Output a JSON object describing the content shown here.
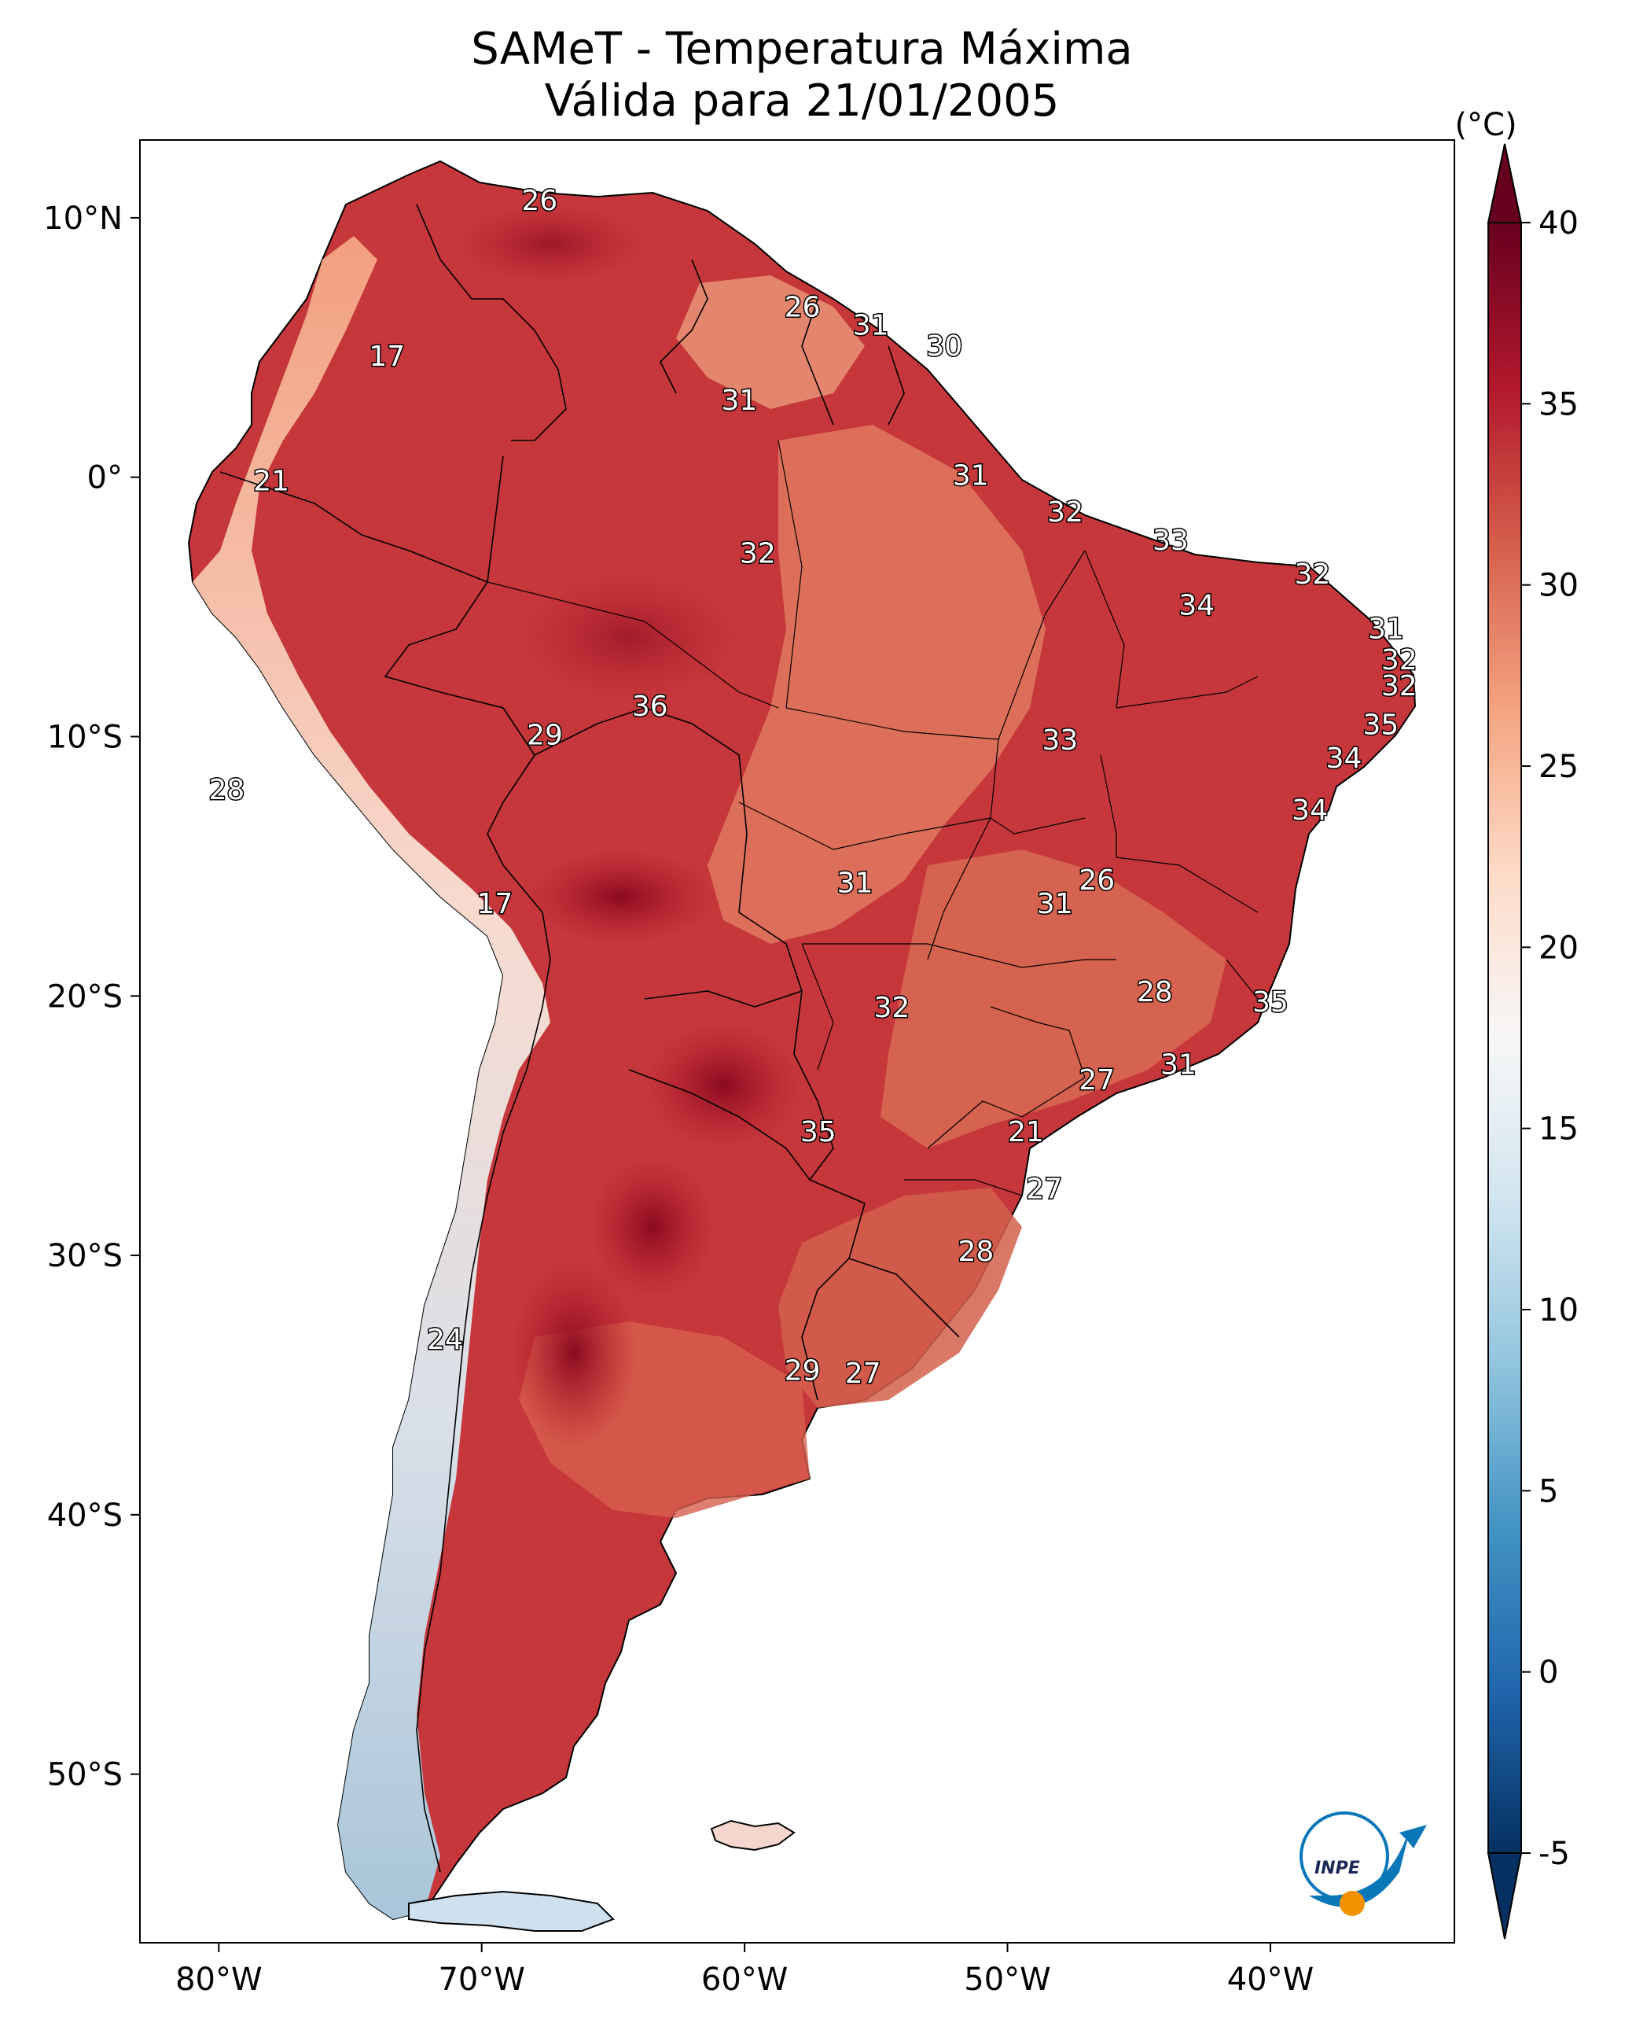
{
  "title": {
    "line1": "SAMeT - Temperatura Máxima",
    "line2": "Válida para 21/01/2005"
  },
  "map": {
    "lon_range": [
      -83,
      -33
    ],
    "lat_range": [
      -56.5,
      13
    ],
    "lon_ticks": [
      {
        "value": -80,
        "label": "80°W"
      },
      {
        "value": -70,
        "label": "70°W"
      },
      {
        "value": -60,
        "label": "60°W"
      },
      {
        "value": -50,
        "label": "50°W"
      },
      {
        "value": -40,
        "label": "40°W"
      }
    ],
    "lat_ticks": [
      {
        "value": 10,
        "label": "10°N"
      },
      {
        "value": 0,
        "label": "0°"
      },
      {
        "value": -10,
        "label": "10°S"
      },
      {
        "value": -20,
        "label": "20°S"
      },
      {
        "value": -30,
        "label": "30°S"
      },
      {
        "value": -40,
        "label": "40°S"
      },
      {
        "value": -50,
        "label": "50°S"
      }
    ],
    "point_labels": [
      {
        "lon": -67.8,
        "lat": 10.6,
        "value": "26"
      },
      {
        "lon": -73.6,
        "lat": 4.6,
        "value": "17"
      },
      {
        "lon": -57.8,
        "lat": 6.5,
        "value": "26"
      },
      {
        "lon": -55.2,
        "lat": 5.8,
        "value": "31"
      },
      {
        "lon": -52.4,
        "lat": 5.0,
        "value": "30"
      },
      {
        "lon": -60.2,
        "lat": 2.9,
        "value": "31"
      },
      {
        "lon": -78.0,
        "lat": -0.2,
        "value": "21"
      },
      {
        "lon": -51.4,
        "lat": 0.0,
        "value": "31"
      },
      {
        "lon": -47.8,
        "lat": -1.4,
        "value": "32"
      },
      {
        "lon": -43.8,
        "lat": -2.5,
        "value": "33"
      },
      {
        "lon": -59.5,
        "lat": -3.0,
        "value": "32"
      },
      {
        "lon": -38.4,
        "lat": -3.8,
        "value": "32"
      },
      {
        "lon": -42.8,
        "lat": -5.0,
        "value": "34"
      },
      {
        "lon": -35.6,
        "lat": -5.9,
        "value": "31"
      },
      {
        "lon": -35.1,
        "lat": -7.1,
        "value": "32"
      },
      {
        "lon": -35.1,
        "lat": -8.1,
        "value": "32"
      },
      {
        "lon": -63.6,
        "lat": -8.9,
        "value": "36"
      },
      {
        "lon": -35.8,
        "lat": -9.6,
        "value": "35"
      },
      {
        "lon": -48.0,
        "lat": -10.2,
        "value": "33"
      },
      {
        "lon": -67.6,
        "lat": -10.0,
        "value": "29"
      },
      {
        "lon": -37.2,
        "lat": -10.9,
        "value": "34"
      },
      {
        "lon": -79.7,
        "lat": -12.1,
        "value": "28"
      },
      {
        "lon": -38.5,
        "lat": -12.9,
        "value": "34"
      },
      {
        "lon": -55.8,
        "lat": -15.7,
        "value": "31"
      },
      {
        "lon": -46.6,
        "lat": -15.6,
        "value": "26"
      },
      {
        "lon": -48.2,
        "lat": -16.5,
        "value": "31"
      },
      {
        "lon": -69.5,
        "lat": -16.5,
        "value": "17"
      },
      {
        "lon": -44.4,
        "lat": -19.9,
        "value": "28"
      },
      {
        "lon": -40.0,
        "lat": -20.3,
        "value": "35"
      },
      {
        "lon": -54.4,
        "lat": -20.5,
        "value": "32"
      },
      {
        "lon": -43.5,
        "lat": -22.7,
        "value": "31"
      },
      {
        "lon": -46.6,
        "lat": -23.3,
        "value": "27"
      },
      {
        "lon": -57.2,
        "lat": -25.3,
        "value": "35"
      },
      {
        "lon": -49.3,
        "lat": -25.3,
        "value": "21"
      },
      {
        "lon": -48.6,
        "lat": -27.5,
        "value": "27"
      },
      {
        "lon": -51.2,
        "lat": -29.9,
        "value": "28"
      },
      {
        "lon": -71.4,
        "lat": -33.3,
        "value": "24"
      },
      {
        "lon": -57.8,
        "lat": -34.5,
        "value": "29"
      },
      {
        "lon": -55.5,
        "lat": -34.6,
        "value": "27"
      }
    ]
  },
  "colorbar": {
    "unit_label": "(°C)",
    "min": -5,
    "max": 40,
    "ticks": [
      "-5",
      "0",
      "5",
      "10",
      "15",
      "20",
      "25",
      "30",
      "35",
      "40"
    ],
    "colors": [
      "#053061",
      "#2166ac",
      "#4393c3",
      "#92c5de",
      "#d1e5f0",
      "#f7f7f7",
      "#fddbc7",
      "#f4a582",
      "#d6604d",
      "#b2182b",
      "#67001f"
    ]
  },
  "logo": {
    "text": "INPE"
  }
}
